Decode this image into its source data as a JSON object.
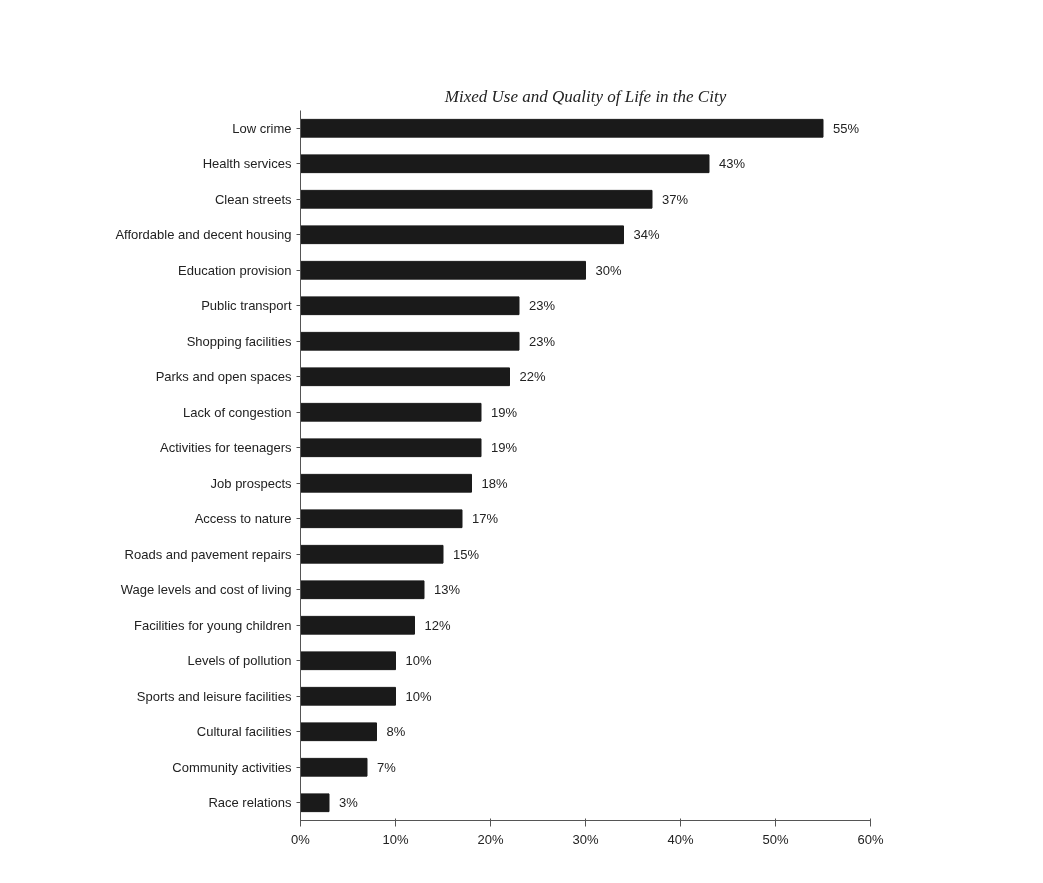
{
  "chart_data": {
    "type": "bar",
    "orientation": "horizontal",
    "title": "Mixed Use and Quality of Life in the City",
    "categories": [
      "Low crime",
      "Health services",
      "Clean streets",
      "Affordable and decent housing",
      "Education provision",
      "Public transport",
      "Shopping facilities",
      "Parks and open spaces",
      "Lack of congestion",
      "Activities for teenagers",
      "Job prospects",
      "Access to nature",
      "Roads and pavement repairs",
      "Wage levels and cost of living",
      "Facilities for young children",
      "Levels of pollution",
      "Sports and leisure facilities",
      "Cultural facilities",
      "Community activities",
      "Race relations"
    ],
    "values": [
      55,
      43,
      37,
      34,
      30,
      23,
      23,
      22,
      19,
      19,
      18,
      17,
      15,
      13,
      12,
      10,
      10,
      8,
      7,
      3
    ],
    "value_labels": [
      "55%",
      "43%",
      "37%",
      "34%",
      "30%",
      "23%",
      "23%",
      "22%",
      "19%",
      "19%",
      "18%",
      "17%",
      "15%",
      "13%",
      "12%",
      "10%",
      "10%",
      "8%",
      "7%",
      "3%"
    ],
    "color": "#1a1a1a",
    "xlim": [
      0,
      60
    ],
    "xticks": [
      {
        "value": 0,
        "label": "0%"
      },
      {
        "value": 10,
        "label": "10%"
      },
      {
        "value": 20,
        "label": "20%"
      },
      {
        "value": 30,
        "label": "30%"
      },
      {
        "value": 40,
        "label": "40%"
      },
      {
        "value": 50,
        "label": "50%"
      },
      {
        "value": 60,
        "label": "60%"
      }
    ],
    "grid": false
  }
}
